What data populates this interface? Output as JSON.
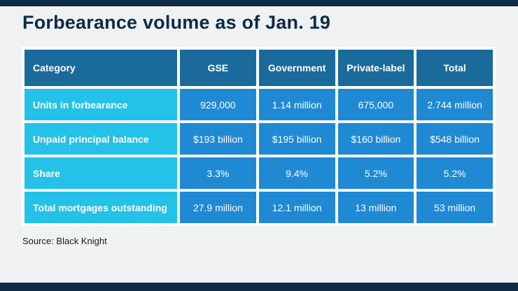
{
  "title": "Forbearance volume as of Jan. 19",
  "source": "Source: Black Knight",
  "colors": {
    "navy_accent": "#0f2a44",
    "header_blue": "#1b6a9c",
    "category_cyan": "#24c1e8",
    "cell_blue": "#1f89d4",
    "background": "#eff1f3",
    "text_white": "#ffffff"
  },
  "table": {
    "columns": [
      "Category",
      "GSE",
      "Government",
      "Private-label",
      "Total"
    ],
    "rows": [
      {
        "label": "Units in forbearance",
        "values": [
          "929,000",
          "1.14 million",
          "675,000",
          "2.744 million"
        ]
      },
      {
        "label": "Unpaid principal balance",
        "values": [
          "$193 billion",
          "$195 billion",
          "$160 billion",
          "$548 billion"
        ]
      },
      {
        "label": "Share",
        "values": [
          "3.3%",
          "9.4%",
          "5.2%",
          "5.2%"
        ]
      },
      {
        "label": "Total mortgages outstanding",
        "values": [
          "27.9 million",
          "12.1 million",
          "13 million",
          "53 million"
        ]
      }
    ]
  },
  "chart_data": {
    "type": "table",
    "title": "Forbearance volume as of Jan. 19",
    "columns": [
      "Category",
      "GSE",
      "Government",
      "Private-label",
      "Total"
    ],
    "rows": [
      [
        "Units in forbearance",
        "929,000",
        "1.14 million",
        "675,000",
        "2.744 million"
      ],
      [
        "Unpaid principal balance",
        "$193 billion",
        "$195 billion",
        "$160 billion",
        "$548 billion"
      ],
      [
        "Share",
        "3.3%",
        "9.4%",
        "5.2%",
        "5.2%"
      ],
      [
        "Total mortgages outstanding",
        "27.9 million",
        "12.1 million",
        "13 million",
        "53 million"
      ]
    ],
    "source": "Black Knight"
  }
}
